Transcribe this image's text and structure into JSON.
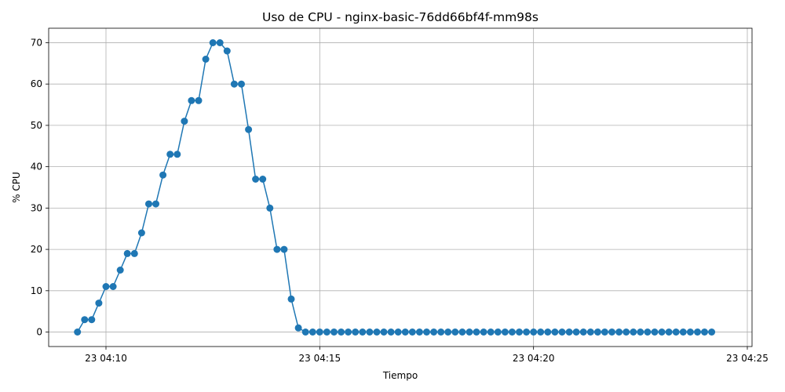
{
  "chart_data": {
    "type": "line",
    "title": "Uso de CPU - nginx-basic-76dd66bf4f-mm98s",
    "xlabel": "Tiempo",
    "ylabel": "% CPU",
    "x_ticks": [
      "23 04:10",
      "23 04:15",
      "23 04:20",
      "23 04:25"
    ],
    "y_ticks": [
      0,
      10,
      20,
      30,
      40,
      50,
      60,
      70
    ],
    "ylim": [
      -3.5,
      73.5
    ],
    "grid": true,
    "colors": {
      "line": "#1f77b4",
      "grid": "#b0b0b0"
    },
    "series": [
      {
        "x": [
          "04:09:20",
          "04:09:30",
          "04:09:40",
          "04:09:50",
          "04:10:00",
          "04:10:10",
          "04:10:20",
          "04:10:30",
          "04:10:40",
          "04:10:50",
          "04:11:00",
          "04:11:10",
          "04:11:20",
          "04:11:30",
          "04:11:40",
          "04:11:50",
          "04:12:00",
          "04:12:10",
          "04:12:20",
          "04:12:30",
          "04:12:40",
          "04:12:50",
          "04:13:00",
          "04:13:10",
          "04:13:20",
          "04:13:30",
          "04:13:40",
          "04:13:50",
          "04:14:00",
          "04:14:10",
          "04:14:20",
          "04:14:30",
          "04:14:40",
          "04:14:50",
          "04:15:00",
          "04:15:10",
          "04:15:20",
          "04:15:30",
          "04:15:40",
          "04:15:50",
          "04:16:00",
          "04:16:10",
          "04:16:20",
          "04:16:30",
          "04:16:40",
          "04:16:50",
          "04:17:00",
          "04:17:10",
          "04:17:20",
          "04:17:30",
          "04:17:40",
          "04:17:50",
          "04:18:00",
          "04:18:10",
          "04:18:20",
          "04:18:30",
          "04:18:40",
          "04:18:50",
          "04:19:00",
          "04:19:10",
          "04:19:20",
          "04:19:30",
          "04:19:40",
          "04:19:50",
          "04:20:00",
          "04:20:10",
          "04:20:20",
          "04:20:30",
          "04:20:40",
          "04:20:50",
          "04:21:00",
          "04:21:10",
          "04:21:20",
          "04:21:30",
          "04:21:40",
          "04:21:50",
          "04:22:00",
          "04:22:10",
          "04:22:20",
          "04:22:30",
          "04:22:40",
          "04:22:50",
          "04:23:00",
          "04:23:10",
          "04:23:20",
          "04:23:30",
          "04:23:40",
          "04:23:50",
          "04:24:00",
          "04:24:10"
        ],
        "values": [
          0,
          3,
          3,
          7,
          11,
          11,
          15,
          19,
          19,
          24,
          31,
          31,
          38,
          43,
          43,
          51,
          56,
          56,
          66,
          70,
          70,
          68,
          60,
          60,
          49,
          37,
          37,
          30,
          20,
          20,
          8,
          1,
          0,
          0,
          0,
          0,
          0,
          0,
          0,
          0,
          0,
          0,
          0,
          0,
          0,
          0,
          0,
          0,
          0,
          0,
          0,
          0,
          0,
          0,
          0,
          0,
          0,
          0,
          0,
          0,
          0,
          0,
          0,
          0,
          0,
          0,
          0,
          0,
          0,
          0,
          0,
          0,
          0,
          0,
          0,
          0,
          0,
          0,
          0,
          0,
          0,
          0,
          0,
          0,
          0,
          0,
          0,
          0,
          0,
          0
        ]
      }
    ]
  }
}
